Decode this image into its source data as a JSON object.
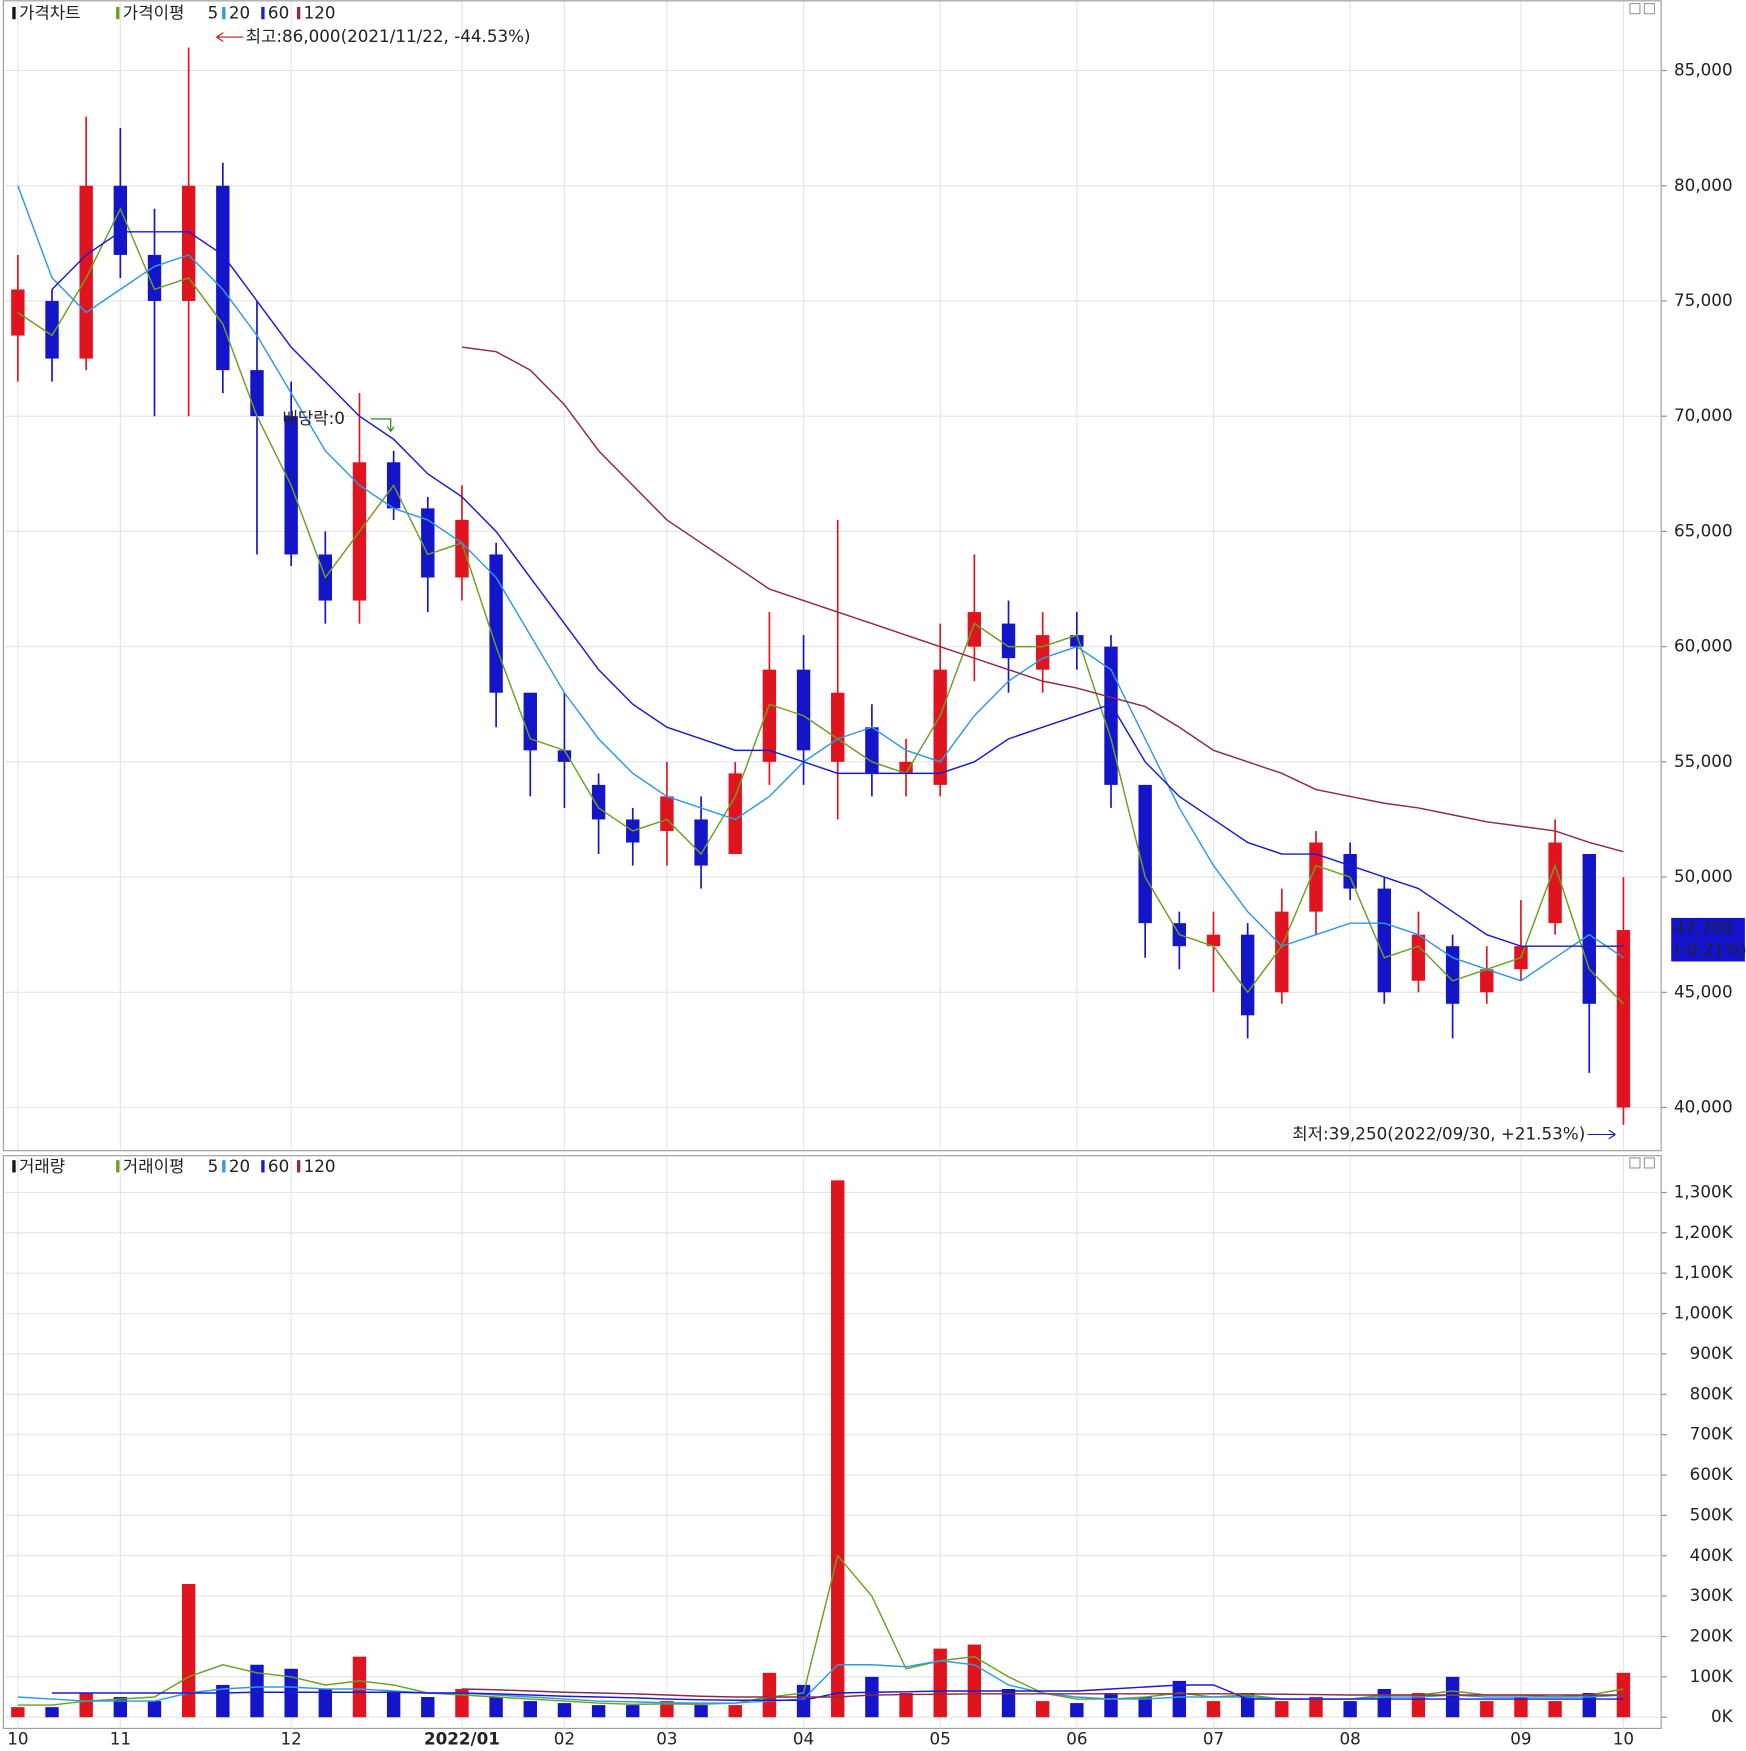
{
  "chart_data": [
    {
      "type": "candlestick",
      "legend_title": "가격차트",
      "ma_legend": "가격이평",
      "up_color": "#e0141e",
      "down_color": "#1414c8",
      "open": [
        73500,
        75000,
        72500,
        80000,
        77000,
        75000,
        80000,
        72000,
        70000,
        64000,
        62000,
        68000,
        66000,
        63000,
        64000,
        58000,
        55500,
        54000,
        52500,
        52000,
        52500,
        51000,
        55000,
        59000,
        55000,
        56500,
        54500,
        54000,
        60000,
        61000,
        59000,
        60500,
        60000,
        54000,
        48000,
        47000,
        47500,
        45000,
        48500,
        51000,
        49500,
        45500,
        47000,
        45000,
        46000,
        48000,
        51000,
        40000
      ],
      "high": [
        77000,
        75500,
        83000,
        82500,
        79000,
        86000,
        81000,
        75000,
        71500,
        65000,
        71000,
        68500,
        66500,
        67000,
        64500,
        58000,
        58000,
        54500,
        53000,
        55000,
        53500,
        55000,
        61500,
        60500,
        65500,
        57500,
        56000,
        61000,
        64000,
        62000,
        61500,
        61500,
        60500,
        54000,
        48500,
        48500,
        48000,
        49500,
        52000,
        51500,
        50000,
        48500,
        47500,
        47000,
        49000,
        52500,
        51000,
        50000
      ],
      "low": [
        71500,
        71500,
        72000,
        76000,
        70000,
        70000,
        71000,
        64000,
        63500,
        61000,
        61000,
        65500,
        61500,
        62000,
        56500,
        53500,
        53000,
        51000,
        50500,
        50500,
        49500,
        51000,
        54000,
        54000,
        52500,
        53500,
        53500,
        53500,
        58500,
        58000,
        58000,
        59000,
        53000,
        46500,
        46000,
        45000,
        43000,
        44500,
        47500,
        49000,
        44500,
        45000,
        43000,
        44500,
        45500,
        47500,
        41500,
        39250
      ],
      "close": [
        75500,
        72500,
        80000,
        77000,
        75000,
        80000,
        72000,
        70000,
        64000,
        62000,
        68000,
        66000,
        63000,
        65500,
        58000,
        55500,
        55000,
        52500,
        51500,
        53500,
        50500,
        54500,
        59000,
        55500,
        58000,
        54500,
        55000,
        59000,
        61500,
        59500,
        60500,
        60000,
        54000,
        48000,
        47000,
        47500,
        44000,
        48500,
        51500,
        49500,
        45000,
        47500,
        44500,
        46000,
        47000,
        51500,
        44500,
        47700
      ],
      "series": [
        {
          "name": "5",
          "color": "#6aa121",
          "values": [
            74500,
            73500,
            76000,
            79000,
            75500,
            76000,
            74000,
            70000,
            67000,
            63000,
            65000,
            67000,
            64000,
            64500,
            60000,
            56000,
            55500,
            53000,
            52000,
            52500,
            51000,
            53500,
            57500,
            57000,
            56000,
            55000,
            54500,
            57000,
            61000,
            60000,
            60000,
            60500,
            56000,
            50000,
            47500,
            47000,
            45000,
            47000,
            50500,
            50000,
            46500,
            47000,
            45500,
            46000,
            46500,
            50500,
            46000,
            44500
          ]
        },
        {
          "name": "20",
          "color": "#2e9ae0",
          "values": [
            80000,
            76000,
            74500,
            75500,
            76500,
            77000,
            75500,
            73500,
            71000,
            68500,
            67000,
            66000,
            65500,
            64500,
            63000,
            60500,
            58000,
            56000,
            54500,
            53500,
            53000,
            52500,
            53500,
            55000,
            56000,
            56500,
            55500,
            55000,
            57000,
            58500,
            59500,
            60000,
            59000,
            56000,
            53000,
            50500,
            48500,
            47000,
            47500,
            48000,
            48000,
            47500,
            46500,
            46000,
            45500,
            46500,
            47500,
            46500
          ]
        },
        {
          "name": "60",
          "color": "#1a1ad0",
          "values": [
            null,
            75500,
            77000,
            78000,
            78000,
            78000,
            77000,
            75000,
            73000,
            71500,
            70000,
            69000,
            67500,
            66500,
            65000,
            63000,
            61000,
            59000,
            57500,
            56500,
            56000,
            55500,
            55500,
            55000,
            54500,
            54500,
            54500,
            54500,
            55000,
            56000,
            56500,
            57000,
            57500,
            55000,
            53500,
            52500,
            51500,
            51000,
            51000,
            50500,
            50000,
            49500,
            48500,
            47500,
            47000,
            47000,
            47000,
            47000
          ]
        },
        {
          "name": "120",
          "color": "#8b2a4a",
          "values": [
            null,
            null,
            null,
            null,
            null,
            null,
            null,
            null,
            null,
            null,
            null,
            null,
            null,
            73000,
            72800,
            72000,
            70500,
            68500,
            67000,
            65500,
            64500,
            63500,
            62500,
            62000,
            61500,
            61000,
            60500,
            60000,
            59500,
            59000,
            58500,
            58200,
            57800,
            57400,
            56500,
            55500,
            55000,
            54500,
            53800,
            53500,
            53200,
            53000,
            52700,
            52400,
            52200,
            52000,
            51500,
            51100
          ]
        }
      ],
      "ylim": [
        38150,
        88050
      ],
      "yticks": [
        {
          "value": 40000,
          "label": "40,000"
        },
        {
          "value": 45000,
          "label": "45,000"
        },
        {
          "value": 50000,
          "label": "50,000"
        },
        {
          "value": 55000,
          "label": "55,000"
        },
        {
          "value": 60000,
          "label": "60,000"
        },
        {
          "value": 65000,
          "label": "65,000"
        },
        {
          "value": 70000,
          "label": "70,000"
        },
        {
          "value": 75000,
          "label": "75,000"
        },
        {
          "value": 80000,
          "label": "80,000"
        },
        {
          "value": 85000,
          "label": "85,000"
        }
      ],
      "grid": true,
      "high_label": "최고:86,000(2021/11/22, -44.53%)",
      "low_label": "최저:39,250(2022/09/30, +21.53%)",
      "dividend_label": "배당락:0",
      "last_price_label": "47,700",
      "last_change_label": "(-0.21%)"
    },
    {
      "type": "bar",
      "legend_title": "거래량",
      "ma_legend": "거래이평",
      "categories": [
        "10",
        null,
        null,
        "11",
        null,
        null,
        null,
        null,
        "12",
        null,
        null,
        null,
        null,
        "2022/01",
        null,
        null,
        "02",
        null,
        null,
        "03",
        null,
        null,
        null,
        "04",
        null,
        null,
        null,
        "05",
        null,
        null,
        null,
        "06",
        null,
        null,
        null,
        "07",
        null,
        null,
        null,
        "08",
        null,
        null,
        null,
        null,
        "09",
        null,
        null,
        "10"
      ],
      "values": [
        25000,
        25000,
        60000,
        50000,
        40000,
        330000,
        80000,
        130000,
        120000,
        70000,
        150000,
        60000,
        50000,
        70000,
        50000,
        40000,
        35000,
        30000,
        30000,
        40000,
        30000,
        30000,
        110000,
        80000,
        1330000,
        100000,
        60000,
        170000,
        180000,
        70000,
        40000,
        35000,
        60000,
        50000,
        90000,
        40000,
        60000,
        40000,
        50000,
        40000,
        70000,
        60000,
        100000,
        40000,
        50000,
        40000,
        60000,
        110000
      ],
      "series": [
        {
          "name": "5",
          "color": "#6aa121",
          "values": [
            30000,
            30000,
            40000,
            45000,
            50000,
            100000,
            130000,
            110000,
            100000,
            80000,
            90000,
            80000,
            60000,
            55000,
            50000,
            45000,
            40000,
            35000,
            32000,
            33000,
            32000,
            35000,
            50000,
            60000,
            400000,
            300000,
            120000,
            140000,
            150000,
            100000,
            60000,
            45000,
            45000,
            50000,
            60000,
            50000,
            55000,
            45000,
            45000,
            45000,
            55000,
            55000,
            65000,
            55000,
            55000,
            50000,
            55000,
            70000
          ]
        },
        {
          "name": "20",
          "color": "#2e9ae0",
          "values": [
            50000,
            45000,
            40000,
            40000,
            40000,
            60000,
            70000,
            75000,
            75000,
            70000,
            70000,
            65000,
            60000,
            60000,
            55000,
            50000,
            45000,
            40000,
            38000,
            36000,
            35000,
            35000,
            40000,
            45000,
            130000,
            130000,
            125000,
            140000,
            130000,
            80000,
            60000,
            50000,
            45000,
            45000,
            50000,
            50000,
            50000,
            45000,
            45000,
            45000,
            50000,
            50000,
            55000,
            50000,
            50000,
            50000,
            50000,
            55000
          ]
        },
        {
          "name": "60",
          "color": "#1a1ad0",
          "values": [
            null,
            60000,
            60000,
            60000,
            60000,
            60000,
            60000,
            62000,
            62000,
            62000,
            62000,
            62000,
            60000,
            60000,
            58000,
            55000,
            52000,
            50000,
            48000,
            45000,
            43000,
            42000,
            42000,
            42000,
            60000,
            62000,
            63000,
            65000,
            65000,
            65000,
            65000,
            65000,
            70000,
            75000,
            80000,
            80000,
            45000,
            45000,
            45000,
            45000,
            45000,
            45000,
            45000,
            45000,
            45000,
            45000,
            45000,
            45000
          ]
        },
        {
          "name": "120",
          "color": "#8b2a4a",
          "values": [
            null,
            null,
            null,
            null,
            null,
            null,
            null,
            null,
            null,
            null,
            null,
            null,
            null,
            70000,
            68000,
            65000,
            62000,
            60000,
            58000,
            55000,
            52000,
            50000,
            50000,
            50000,
            50000,
            55000,
            56000,
            57000,
            58000,
            58000,
            58000,
            58000,
            58000,
            58000,
            58000,
            58000,
            58000,
            57000,
            56000,
            55000,
            55000,
            55000,
            55000,
            55000,
            55000,
            55000,
            55000,
            55000
          ]
        }
      ],
      "ylim": [
        -27700,
        1391000
      ],
      "yticks": [
        {
          "value": 0,
          "label": "0K"
        },
        {
          "value": 100000,
          "label": "100K"
        },
        {
          "value": 200000,
          "label": "200K"
        },
        {
          "value": 300000,
          "label": "300K"
        },
        {
          "value": 400000,
          "label": "400K"
        },
        {
          "value": 500000,
          "label": "500K"
        },
        {
          "value": 600000,
          "label": "600K"
        },
        {
          "value": 700000,
          "label": "700K"
        },
        {
          "value": 800000,
          "label": "800K"
        },
        {
          "value": 900000,
          "label": "900K"
        },
        {
          "value": 1000000,
          "label": "1,000K"
        },
        {
          "value": 1100000,
          "label": "1,100K"
        },
        {
          "value": 1200000,
          "label": "1,200K"
        },
        {
          "value": 1300000,
          "label": "1,300K"
        }
      ],
      "grid": true
    }
  ]
}
